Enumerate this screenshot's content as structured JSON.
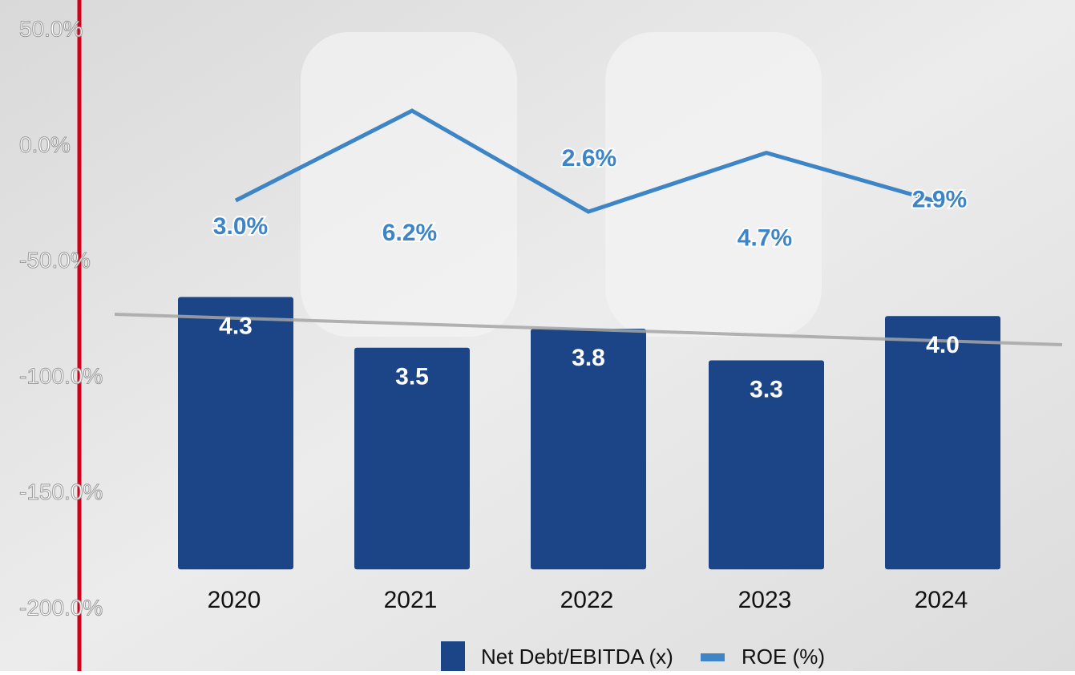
{
  "chart_data": {
    "type": "bar_line",
    "categories": [
      "2020",
      "2021",
      "2022",
      "2023",
      "2024"
    ],
    "ylim": [
      -200,
      50
    ],
    "yticks": [
      {
        "value": 50,
        "label": "50.0%"
      },
      {
        "value": 0,
        "label": "0.0%"
      },
      {
        "value": -50,
        "label": "-50.0%"
      },
      {
        "value": -100,
        "label": "-100.0%"
      },
      {
        "value": -150,
        "label": "-150.0%"
      },
      {
        "value": -200,
        "label": "-200.0%"
      }
    ],
    "y2lim": [
      -0.63,
      8.51
    ],
    "y3lim": [
      -11.57,
      9.06
    ],
    "series": [
      {
        "name": "Net Debt/EBITDA (x)",
        "type": "bar",
        "color": "#1c4587",
        "axis": "y2",
        "values": [
          4.3,
          3.5,
          3.8,
          3.3,
          4.0
        ],
        "value_labels": [
          "4.3",
          "3.5",
          "3.8",
          "3.3",
          "4.0"
        ]
      },
      {
        "name": "ROE (%)",
        "type": "line",
        "color": "#3d85c6",
        "axis": "y3",
        "values": [
          3.0,
          6.2,
          2.6,
          4.7,
          2.9
        ],
        "value_labels": [
          "3.0%",
          "6.2%",
          "2.6%",
          "4.7%",
          "2.9%"
        ]
      }
    ]
  }
}
